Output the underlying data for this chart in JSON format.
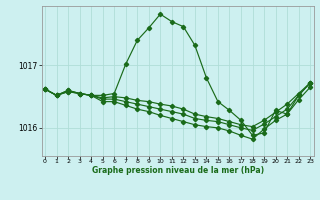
{
  "xlabel_label": "Graphe pression niveau de la mer (hPa)",
  "background_color": "#cdf0f0",
  "line_color": "#1a6b1a",
  "grid_color": "#b0ddd8",
  "yticks": [
    1016,
    1017
  ],
  "ylim": [
    1015.55,
    1017.95
  ],
  "xlim": [
    -0.3,
    23.3
  ],
  "xticks": [
    0,
    1,
    2,
    3,
    4,
    5,
    6,
    7,
    8,
    9,
    10,
    11,
    12,
    13,
    14,
    15,
    16,
    17,
    18,
    19,
    20,
    21,
    22,
    23
  ],
  "series": [
    [
      1016.62,
      1016.52,
      1016.6,
      1016.55,
      1016.52,
      1016.52,
      1016.55,
      1017.02,
      1017.4,
      1017.6,
      1017.82,
      1017.7,
      1017.62,
      1017.32,
      1016.8,
      1016.42,
      1016.28,
      1016.12,
      1015.88,
      1015.92,
      1016.28,
      1016.22,
      1016.52,
      1016.72
    ],
    [
      1016.62,
      1016.52,
      1016.6,
      1016.55,
      1016.52,
      1016.48,
      1016.5,
      1016.48,
      1016.44,
      1016.42,
      1016.38,
      1016.35,
      1016.3,
      1016.22,
      1016.18,
      1016.15,
      1016.1,
      1016.05,
      1016.02,
      1016.12,
      1016.25,
      1016.38,
      1016.55,
      1016.72
    ],
    [
      1016.62,
      1016.52,
      1016.58,
      1016.55,
      1016.52,
      1016.46,
      1016.46,
      1016.42,
      1016.38,
      1016.34,
      1016.3,
      1016.26,
      1016.22,
      1016.15,
      1016.12,
      1016.1,
      1016.05,
      1016.0,
      1015.96,
      1016.06,
      1016.18,
      1016.3,
      1016.52,
      1016.72
    ],
    [
      1016.62,
      1016.52,
      1016.58,
      1016.55,
      1016.52,
      1016.42,
      1016.42,
      1016.36,
      1016.3,
      1016.26,
      1016.2,
      1016.15,
      1016.1,
      1016.05,
      1016.02,
      1016.0,
      1015.95,
      1015.88,
      1015.82,
      1015.98,
      1016.12,
      1016.22,
      1016.45,
      1016.65
    ]
  ]
}
